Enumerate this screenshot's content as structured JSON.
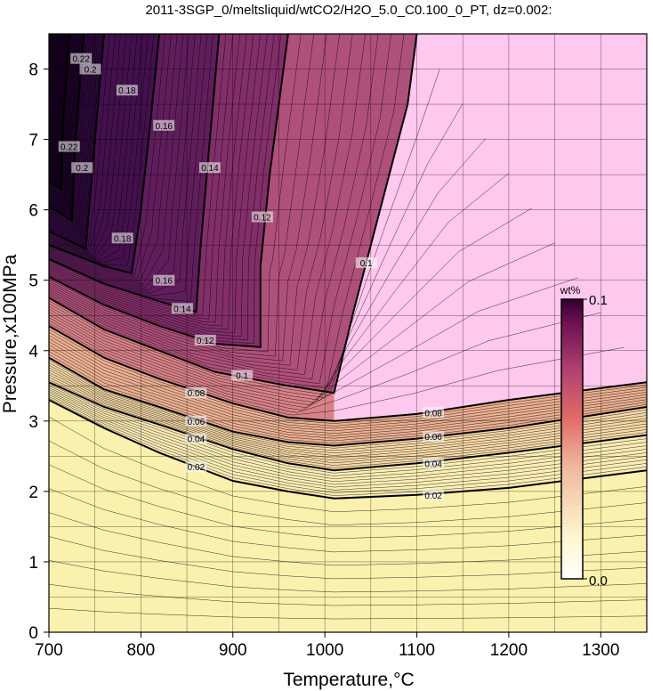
{
  "chart_data": {
    "type": "heatmap",
    "title": "2011-3SGP_0/meltsliquid/wtCO2/H2O_5.0_C0.100_0_PT, dz=0.002:",
    "xlabel": "Temperature,°C",
    "ylabel": "Pressure,x100MPa",
    "xlim": [
      700,
      1350
    ],
    "ylim": [
      0,
      8.5
    ],
    "xticks": [
      "700",
      "800",
      "900",
      "1000",
      "1100",
      "1200",
      "1300"
    ],
    "yticks": [
      "0",
      "1",
      "2",
      "3",
      "4",
      "5",
      "6",
      "7",
      "8"
    ],
    "grid": true,
    "colorbar": {
      "label": "wt%",
      "min": 0.0,
      "max": 0.1,
      "min_label": "0.0",
      "max_label": "0.1",
      "colors": [
        "#fffcc0",
        "#f3d8a0",
        "#e89a86",
        "#c46a84",
        "#8e2c6e",
        "#ffc8ee"
      ]
    },
    "labeled_contours": [
      {
        "level": "0.02",
        "points": [
          [
            700,
            3.3
          ],
          [
            760,
            2.9
          ],
          [
            820,
            2.55
          ],
          [
            900,
            2.15
          ],
          [
            960,
            2.0
          ],
          [
            1010,
            1.9
          ],
          [
            1100,
            1.95
          ],
          [
            1200,
            2.05
          ],
          [
            1350,
            2.3
          ]
        ]
      },
      {
        "level": "0.04",
        "points": [
          [
            700,
            3.55
          ],
          [
            760,
            3.2
          ],
          [
            820,
            2.95
          ],
          [
            900,
            2.6
          ],
          [
            960,
            2.4
          ],
          [
            1010,
            2.3
          ],
          [
            1100,
            2.4
          ],
          [
            1200,
            2.55
          ],
          [
            1350,
            2.8
          ]
        ]
      },
      {
        "level": "0.06",
        "points": [
          [
            700,
            3.9
          ],
          [
            760,
            3.45
          ],
          [
            820,
            3.2
          ],
          [
            900,
            2.85
          ],
          [
            960,
            2.7
          ],
          [
            1010,
            2.65
          ],
          [
            1100,
            2.75
          ],
          [
            1200,
            2.9
          ],
          [
            1350,
            3.2
          ]
        ]
      },
      {
        "level": "0.08",
        "points": [
          [
            700,
            4.35
          ],
          [
            760,
            3.9
          ],
          [
            820,
            3.6
          ],
          [
            900,
            3.25
          ],
          [
            960,
            3.05
          ],
          [
            1010,
            3.0
          ],
          [
            1100,
            3.1
          ],
          [
            1200,
            3.3
          ],
          [
            1350,
            3.55
          ]
        ]
      },
      {
        "level": "0.1",
        "points": [
          [
            700,
            4.75
          ],
          [
            760,
            4.3
          ],
          [
            820,
            4.0
          ],
          [
            880,
            3.7
          ],
          [
            960,
            3.5
          ],
          [
            1010,
            3.4
          ],
          [
            1030,
            4.5
          ],
          [
            1060,
            6.0
          ],
          [
            1090,
            7.5
          ],
          [
            1100,
            8.5
          ]
        ]
      },
      {
        "level": "0.12",
        "points": [
          [
            700,
            5.05
          ],
          [
            760,
            4.65
          ],
          [
            820,
            4.35
          ],
          [
            880,
            4.1
          ],
          [
            930,
            4.05
          ],
          [
            930,
            5.2
          ],
          [
            940,
            6.5
          ],
          [
            960,
            8.5
          ]
        ]
      },
      {
        "level": "0.14",
        "points": [
          [
            700,
            5.3
          ],
          [
            760,
            4.95
          ],
          [
            820,
            4.7
          ],
          [
            860,
            4.55
          ],
          [
            865,
            5.5
          ],
          [
            875,
            7.0
          ],
          [
            885,
            8.5
          ]
        ]
      },
      {
        "level": "0.16",
        "points": [
          [
            700,
            5.5
          ],
          [
            760,
            5.2
          ],
          [
            790,
            5.1
          ],
          [
            800,
            6.0
          ],
          [
            810,
            7.2
          ],
          [
            820,
            8.5
          ]
        ]
      },
      {
        "level": "0.18",
        "points": [
          [
            700,
            5.7
          ],
          [
            740,
            5.45
          ],
          [
            745,
            6.2
          ],
          [
            752,
            7.3
          ],
          [
            760,
            8.5
          ]
        ]
      },
      {
        "level": "0.2",
        "points": [
          [
            700,
            6.05
          ],
          [
            725,
            5.85
          ],
          [
            728,
            6.8
          ],
          [
            735,
            8.0
          ],
          [
            738,
            8.5
          ]
        ]
      },
      {
        "level": "0.22",
        "points": [
          [
            700,
            6.4
          ],
          [
            713,
            6.3
          ],
          [
            715,
            7.2
          ],
          [
            720,
            8.1
          ],
          [
            722,
            8.5
          ]
        ]
      }
    ],
    "contour_labels": [
      {
        "text": "0.02",
        "x": 1118,
        "y": 1.95
      },
      {
        "text": "0.04",
        "x": 1118,
        "y": 2.4
      },
      {
        "text": "0.06",
        "x": 1118,
        "y": 2.78
      },
      {
        "text": "0.08",
        "x": 1118,
        "y": 3.12
      },
      {
        "text": "0.02",
        "x": 860,
        "y": 2.35
      },
      {
        "text": "0.04",
        "x": 860,
        "y": 2.75
      },
      {
        "text": "0.06",
        "x": 860,
        "y": 3.0
      },
      {
        "text": "0.08",
        "x": 860,
        "y": 3.4
      },
      {
        "text": "0.1",
        "x": 910,
        "y": 3.65
      },
      {
        "text": "0.12",
        "x": 870,
        "y": 4.15
      },
      {
        "text": "0.14",
        "x": 845,
        "y": 4.6
      },
      {
        "text": "0.16",
        "x": 825,
        "y": 5.0
      },
      {
        "text": "0.18",
        "x": 780,
        "y": 5.6
      },
      {
        "text": "0.1",
        "x": 1045,
        "y": 5.25
      },
      {
        "text": "0.12",
        "x": 932,
        "y": 5.9
      },
      {
        "text": "0.14",
        "x": 875,
        "y": 6.6
      },
      {
        "text": "0.16",
        "x": 825,
        "y": 7.2
      },
      {
        "text": "0.18",
        "x": 785,
        "y": 7.7
      },
      {
        "text": "0.2",
        "x": 745,
        "y": 8.0
      },
      {
        "text": "0.22",
        "x": 735,
        "y": 8.15
      },
      {
        "text": "0.2",
        "x": 736,
        "y": 6.6
      },
      {
        "text": "0.22",
        "x": 722,
        "y": 6.9
      }
    ]
  }
}
